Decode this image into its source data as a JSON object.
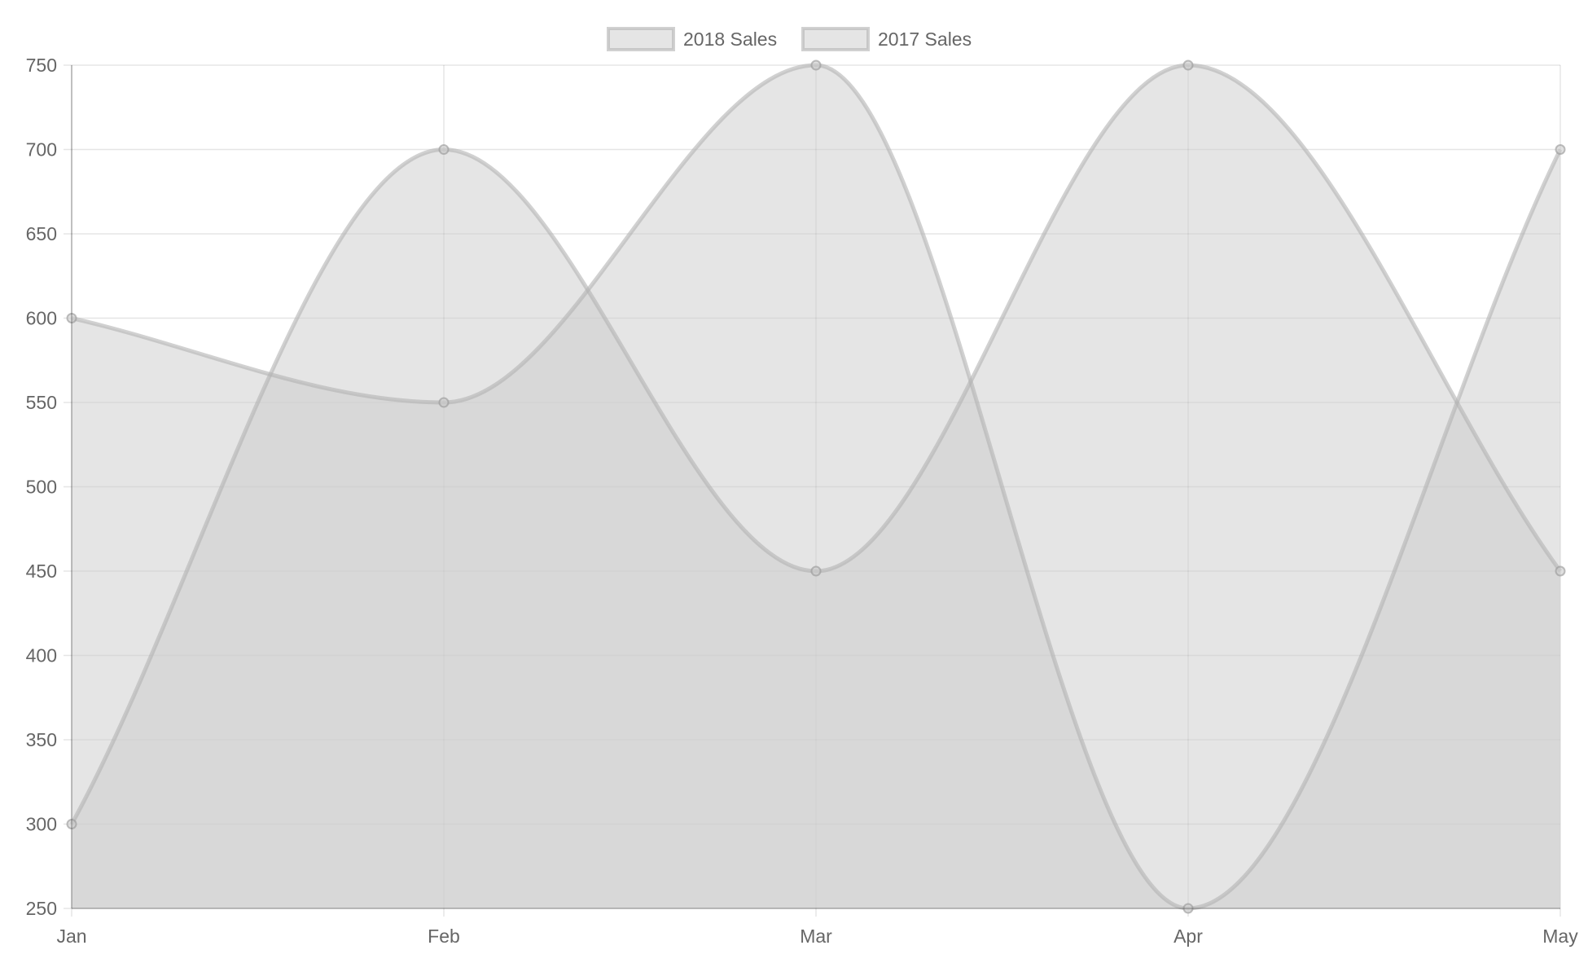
{
  "chart_data": {
    "type": "area",
    "title": "",
    "xlabel": "",
    "ylabel": "",
    "categories": [
      "Jan",
      "Feb",
      "Mar",
      "Apr",
      "May"
    ],
    "ylim": [
      250,
      750
    ],
    "yticks": [
      250,
      300,
      350,
      400,
      450,
      500,
      550,
      600,
      650,
      700,
      750
    ],
    "grid": true,
    "legend_position": "top-center",
    "series": [
      {
        "name": "2018 Sales",
        "values": [
          300,
          700,
          450,
          750,
          450
        ],
        "fill_color": "#cccccc",
        "stroke_color": "#b3b3b3"
      },
      {
        "name": "2017 Sales",
        "values": [
          600,
          550,
          750,
          250,
          700
        ],
        "fill_color": "#cccccc",
        "stroke_color": "#b3b3b3"
      }
    ]
  }
}
